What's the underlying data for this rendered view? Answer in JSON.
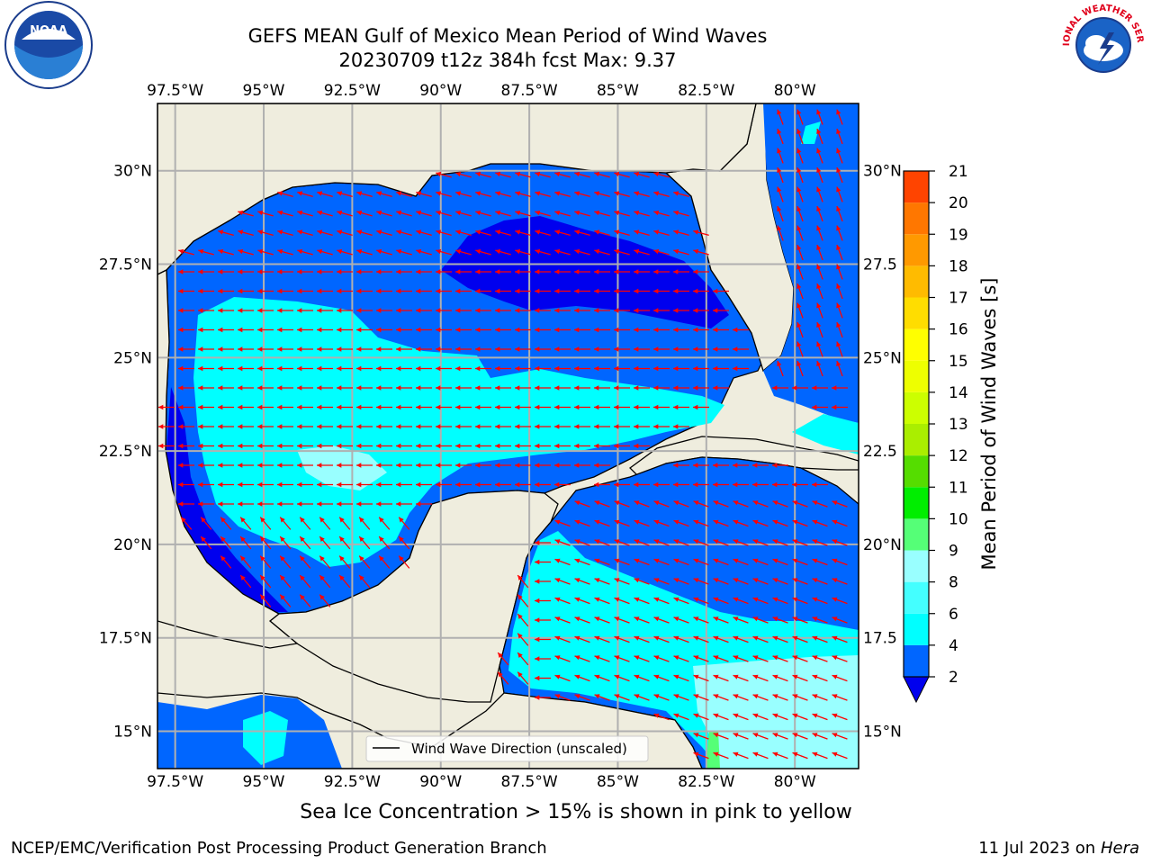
{
  "title": {
    "line1": "GEFS MEAN Gulf of Mexico Mean Period of Wind Waves",
    "line2": "20230709 t12z 384h fcst   Max: 9.37"
  },
  "logos": {
    "left": "noaa-logo",
    "right": "nws-logo",
    "noaa_text": "NOAA",
    "nws_text": "NATIONAL WEATHER SERVICE"
  },
  "map": {
    "lon_labels": [
      "97.5°W",
      "95°W",
      "92.5°W",
      "90°W",
      "87.5°W",
      "85°W",
      "82.5°W",
      "80°W"
    ],
    "lat_labels_left": [
      "30°N",
      "27.5°N",
      "25°N",
      "22.5°N",
      "20°N",
      "17.5°N",
      "15°N"
    ],
    "lat_labels_right": [
      "30°N",
      "27.5",
      "25°N",
      "22.5",
      "20°N",
      "17.5",
      "15°N"
    ],
    "lon_range": [
      -98,
      -78.2
    ],
    "lat_range": [
      14,
      31.8
    ],
    "legend_label": "Wind Wave Direction (unscaled)",
    "land_color": "#efedde",
    "arrow_color": "#ff0000"
  },
  "colorbar": {
    "label": "Mean Period of Wind Waves [s]",
    "ticks": [
      "2",
      "4",
      "6",
      "8",
      "9",
      "10",
      "11",
      "12",
      "13",
      "14",
      "15",
      "16",
      "17",
      "18",
      "19",
      "20",
      "21"
    ],
    "colors": [
      "#0066ff",
      "#00ffff",
      "#44ffff",
      "#99ffff",
      "#55ff77",
      "#00ee00",
      "#55dd00",
      "#aaee00",
      "#ccff00",
      "#eeff00",
      "#ffff00",
      "#ffdd00",
      "#ffbb00",
      "#ff9900",
      "#ff7700",
      "#ff4400",
      "#ff0000"
    ],
    "under_color": "#0000ee"
  },
  "footer": {
    "ice_note": "Sea Ice Concentration > 15% is shown in pink to yellow",
    "credit": "NCEP/EMC/Verification Post Processing Product Generation Branch",
    "date": "11 Jul 2023 on ",
    "host": "Hera"
  }
}
